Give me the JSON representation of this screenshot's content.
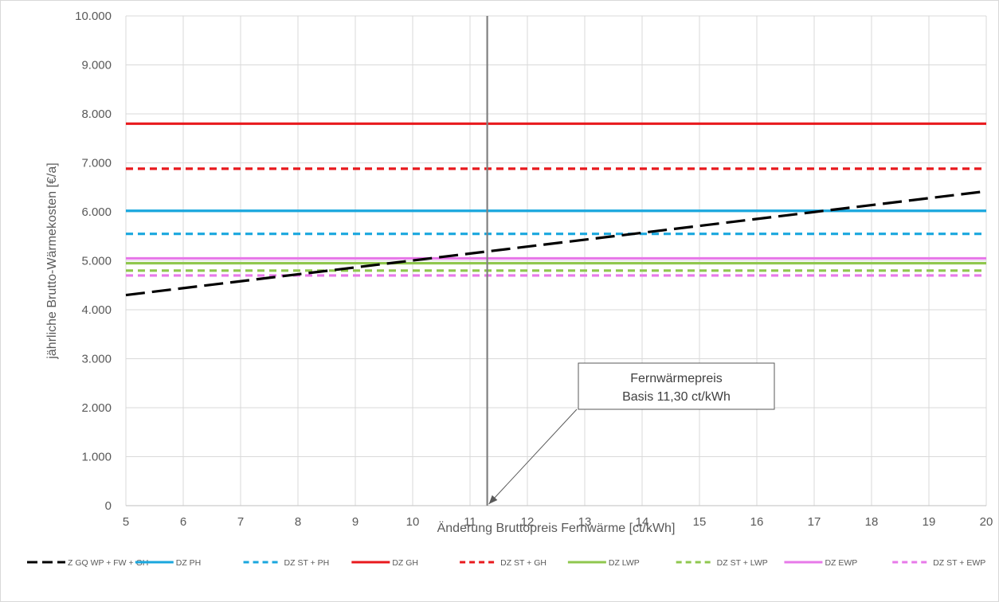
{
  "chart_data": {
    "type": "line",
    "xlabel": "Änderung Bruttopreis Fernwärme [ct/kWh]",
    "ylabel": "jährliche Brutto-Wärmekosten [€/a]",
    "xlim": [
      5,
      20
    ],
    "ylim": [
      0,
      10000
    ],
    "x_ticks": [
      "5",
      "6",
      "7",
      "8",
      "9",
      "10",
      "11",
      "12",
      "13",
      "14",
      "15",
      "16",
      "17",
      "18",
      "19",
      "20"
    ],
    "y_ticks": [
      "0",
      "1.000",
      "2.000",
      "3.000",
      "4.000",
      "5.000",
      "6.000",
      "7.000",
      "8.000",
      "9.000",
      "10.000"
    ],
    "grid": true,
    "legend_position": "bottom",
    "series": [
      {
        "name": "Z GQ  WP + FW + GH",
        "color": "#000000",
        "style": "long-dash",
        "x": [
          5,
          20
        ],
        "y": [
          4300,
          6420
        ]
      },
      {
        "name": "DZ PH",
        "color": "#1aa7de",
        "style": "solid",
        "x": [
          5,
          20
        ],
        "y": [
          6020,
          6020
        ]
      },
      {
        "name": "DZ ST + PH",
        "color": "#1aa7de",
        "style": "dashed",
        "x": [
          5,
          20
        ],
        "y": [
          5550,
          5550
        ]
      },
      {
        "name": "DZ GH",
        "color": "#e8191d",
        "style": "solid",
        "x": [
          5,
          20
        ],
        "y": [
          7800,
          7800
        ]
      },
      {
        "name": "DZ ST + GH",
        "color": "#e8191d",
        "style": "dashed",
        "x": [
          5,
          20
        ],
        "y": [
          6880,
          6880
        ]
      },
      {
        "name": "DZ LWP",
        "color": "#8fc74e",
        "style": "solid",
        "x": [
          5,
          20
        ],
        "y": [
          4950,
          4950
        ]
      },
      {
        "name": "DZ ST + LWP",
        "color": "#8fc74e",
        "style": "dashed",
        "x": [
          5,
          20
        ],
        "y": [
          4800,
          4800
        ]
      },
      {
        "name": "DZ EWP",
        "color": "#e779e9",
        "style": "solid",
        "x": [
          5,
          20
        ],
        "y": [
          5050,
          5050
        ]
      },
      {
        "name": "DZ ST + EWP",
        "color": "#e779e9",
        "style": "dashed",
        "x": [
          5,
          20
        ],
        "y": [
          4700,
          4700
        ]
      }
    ],
    "reference_line": {
      "x": 11.3,
      "color": "#808080"
    },
    "annotation": {
      "lines": [
        "Fernwärmepreis",
        "Basis 11,30  ct/kWh"
      ],
      "arrow_target": {
        "x": 11.3,
        "y": 0
      }
    }
  }
}
